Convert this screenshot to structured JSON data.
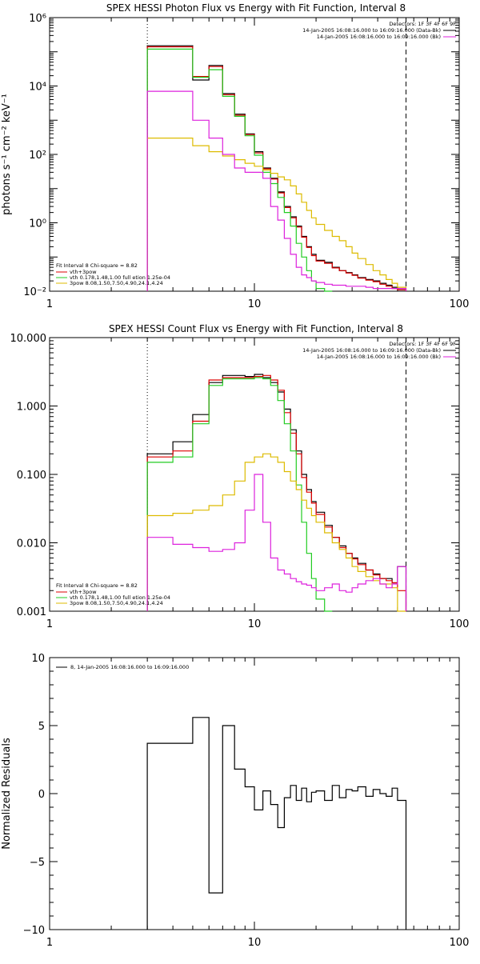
{
  "colors": {
    "black": "#000000",
    "red": "#dd0000",
    "green": "#22cc22",
    "magenta": "#dd22dd",
    "gold": "#ddbb00"
  },
  "chart_data": [
    {
      "type": "line",
      "title": "SPEX HESSI Photon Flux vs Energy with Fit Function, Interval 8",
      "ylabel": "photons s⁻¹ cm⁻² keV⁻¹",
      "xlabel": "",
      "xscale": "log",
      "yscale": "log",
      "xlim": [
        1,
        100
      ],
      "ylim": [
        0.01,
        1000000
      ],
      "xticks": [
        "1",
        "10",
        "100"
      ],
      "yticks": [
        "10⁻²",
        "10⁰",
        "10²",
        "10⁴",
        "10⁶"
      ],
      "vlines": [
        {
          "x": 3,
          "style": "dotted"
        },
        {
          "x": 55,
          "style": "dashed"
        }
      ],
      "legend_top": {
        "header": "Detectors: 1F 3F 4F 6F 9F",
        "entries": [
          "14-Jan-2005 16:08:16.000 to 16:09:16.000 (Data-Bk)",
          "14-Jan-2005 16:08:16.000 to 16:09:16.000 (Bk)"
        ]
      },
      "legend_bottom": {
        "header": "Fit Interval 8   Chi-square = 8.82",
        "entries": [
          "vth+3pow",
          "vth 0.178,1.48,1.00  full etion 1.25e-04",
          "3pow 8.08,1.50,7.50,4.90,24.1,4.24"
        ]
      },
      "edges": [
        3,
        4,
        5,
        6,
        7,
        8,
        9,
        10,
        11,
        12,
        13,
        14,
        15,
        16,
        17,
        18,
        19,
        20,
        22,
        24,
        26,
        28,
        30,
        32,
        35,
        38,
        41,
        44,
        47,
        50,
        55
      ],
      "series": [
        {
          "name": "data",
          "color": "black",
          "values": [
            150000,
            150000,
            15000,
            40000,
            6000,
            1500,
            400,
            120,
            40,
            20,
            8,
            3,
            1.5,
            0.8,
            0.4,
            0.2,
            0.12,
            0.08,
            0.07,
            0.05,
            0.04,
            0.035,
            0.03,
            0.025,
            0.022,
            0.02,
            0.017,
            0.015,
            0.013,
            0.011
          ]
        },
        {
          "name": "total",
          "color": "red",
          "values": [
            140000,
            140000,
            19000,
            37000,
            5600,
            1400,
            380,
            110,
            38,
            19,
            7.5,
            2.8,
            1.4,
            0.75,
            0.38,
            0.19,
            0.11,
            0.076,
            0.065,
            0.048,
            0.04,
            0.034,
            0.029,
            0.024,
            0.021,
            0.019,
            0.016,
            0.014,
            0.012,
            0.011
          ]
        },
        {
          "name": "vth",
          "color": "green",
          "values": [
            120000,
            120000,
            18000,
            30000,
            5000,
            1300,
            350,
            95,
            30,
            14,
            5.5,
            2,
            0.8,
            0.25,
            0.1,
            0.04,
            0.02,
            0.012,
            0.009
          ]
        },
        {
          "name": "3pow",
          "color": "gold",
          "values": [
            300,
            300,
            180,
            120,
            90,
            70,
            55,
            45,
            35,
            28,
            22,
            18,
            12,
            7,
            4,
            2.3,
            1.4,
            0.9,
            0.6,
            0.4,
            0.3,
            0.2,
            0.13,
            0.09,
            0.06,
            0.04,
            0.03,
            0.022,
            0.017,
            0.013
          ]
        },
        {
          "name": "magenta",
          "color": "magenta",
          "values": [
            7000,
            7000,
            1000,
            300,
            100,
            40,
            30,
            30,
            20,
            3,
            1.2,
            0.35,
            0.12,
            0.05,
            0.03,
            0.025,
            0.02,
            0.018,
            0.016,
            0.015,
            0.015,
            0.014,
            0.014,
            0.014,
            0.013,
            0.012,
            0.012,
            0.012,
            0.012,
            0.012
          ]
        }
      ]
    },
    {
      "type": "line",
      "title": "SPEX HESSI Count Flux vs Energy with Fit Function, Interval 8",
      "xlabel": "",
      "ylabel": "",
      "xscale": "log",
      "yscale": "log",
      "xlim": [
        1,
        100
      ],
      "ylim": [
        0.001,
        10
      ],
      "xticks": [
        "1",
        "10",
        "100"
      ],
      "yticks": [
        "0.001",
        "0.010",
        "0.100",
        "1.000",
        "10.000"
      ],
      "vlines": [
        {
          "x": 3,
          "style": "dotted"
        },
        {
          "x": 55,
          "style": "dashed"
        }
      ],
      "legend_top": {
        "header": "Detectors: 1F 3F 4F 6F 9F",
        "entries": [
          "14-Jan-2005 16:08:16.000 to 16:09:16.000 (Data-Bk)",
          "14-Jan-2005 16:08:16.000 to 16:09:16.000 (Bk)"
        ]
      },
      "legend_bottom": {
        "header": "Fit Interval 8   Chi-square = 8.82",
        "entries": [
          "vth+3pow",
          "vth 0.178,1.48,1.00  full etion 1.25e-04",
          "3pow 8.08,1.50,7.50,4.90,24.1,4.24"
        ]
      },
      "edges": [
        3,
        4,
        5,
        6,
        7,
        8,
        9,
        10,
        11,
        12,
        13,
        14,
        15,
        16,
        17,
        18,
        19,
        20,
        22,
        24,
        26,
        28,
        30,
        32,
        35,
        38,
        41,
        44,
        47,
        50,
        55
      ],
      "series": [
        {
          "name": "data",
          "color": "black",
          "values": [
            0.2,
            0.3,
            0.75,
            2.2,
            2.8,
            2.8,
            2.7,
            2.9,
            2.6,
            2.2,
            1.6,
            0.9,
            0.45,
            0.22,
            0.1,
            0.06,
            0.04,
            0.028,
            0.018,
            0.012,
            0.009,
            0.007,
            0.006,
            0.005,
            0.004,
            0.0035,
            0.003,
            0.003,
            0.0026,
            0.0045
          ]
        },
        {
          "name": "total",
          "color": "red",
          "values": [
            0.18,
            0.22,
            0.6,
            2.4,
            2.6,
            2.6,
            2.6,
            2.7,
            2.8,
            2.4,
            1.7,
            0.8,
            0.4,
            0.2,
            0.09,
            0.055,
            0.038,
            0.026,
            0.017,
            0.012,
            0.0085,
            0.007,
            0.0058,
            0.0048,
            0.004,
            0.0034,
            0.003,
            0.0028,
            0.0026,
            0.002
          ]
        },
        {
          "name": "vth",
          "color": "green",
          "values": [
            0.15,
            0.18,
            0.55,
            2.0,
            2.5,
            2.5,
            2.5,
            2.6,
            2.5,
            2.0,
            1.2,
            0.55,
            0.22,
            0.07,
            0.02,
            0.007,
            0.003,
            0.0015,
            0.0008
          ]
        },
        {
          "name": "3pow",
          "color": "gold",
          "values": [
            0.025,
            0.027,
            0.03,
            0.035,
            0.05,
            0.08,
            0.15,
            0.18,
            0.2,
            0.18,
            0.15,
            0.11,
            0.08,
            0.06,
            0.042,
            0.032,
            0.025,
            0.02,
            0.014,
            0.01,
            0.008,
            0.006,
            0.0045,
            0.0038,
            0.0032,
            0.0028,
            0.0025,
            0.0025,
            0.0022,
            0.0008
          ]
        },
        {
          "name": "magenta",
          "color": "magenta",
          "values": [
            0.012,
            0.0095,
            0.0085,
            0.0075,
            0.008,
            0.01,
            0.03,
            0.1,
            0.02,
            0.006,
            0.004,
            0.0035,
            0.003,
            0.0027,
            0.0025,
            0.0024,
            0.0022,
            0.002,
            0.0022,
            0.0025,
            0.002,
            0.0019,
            0.0022,
            0.0025,
            0.0028,
            0.003,
            0.0025,
            0.0022,
            0.0025,
            0.0045
          ]
        }
      ]
    },
    {
      "type": "line",
      "title": "",
      "xlabel": "",
      "ylabel": "Normalized Residuals",
      "xscale": "log",
      "yscale": "linear",
      "xlim": [
        1,
        100
      ],
      "ylim": [
        -10,
        10
      ],
      "xticks": [
        "1",
        "10",
        "100"
      ],
      "yticks": [
        "−10",
        "−5",
        "0",
        "5",
        "10"
      ],
      "legend_top": {
        "header": "",
        "entries": [
          "8, 14-Jan-2005 16:08:16.000 to 16:09:16.000"
        ]
      },
      "edges": [
        3,
        4,
        5,
        6,
        7,
        8,
        9,
        10,
        11,
        12,
        13,
        14,
        15,
        16,
        17,
        18,
        19,
        20,
        22,
        24,
        26,
        28,
        30,
        32,
        35,
        38,
        41,
        44,
        47,
        50,
        55
      ],
      "series": [
        {
          "name": "residuals",
          "color": "black",
          "values": [
            3.7,
            3.7,
            5.6,
            -7.3,
            5.0,
            1.8,
            0.5,
            -1.2,
            0.2,
            -0.8,
            -2.5,
            -0.3,
            0.6,
            -0.5,
            0.4,
            -0.6,
            0.1,
            0.2,
            -0.5,
            0.6,
            -0.3,
            0.3,
            0.2,
            0.5,
            -0.2,
            0.3,
            0.0,
            -0.2,
            0.4,
            -0.5
          ]
        }
      ]
    }
  ]
}
